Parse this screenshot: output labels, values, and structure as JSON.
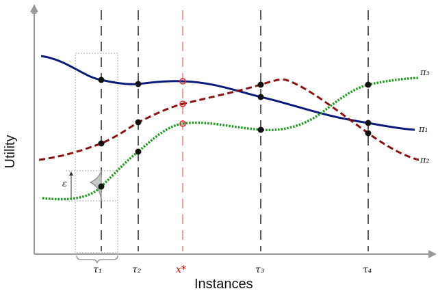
{
  "axes": {
    "x_label": "Instances",
    "y_label": "Utility"
  },
  "tick_labels": {
    "tau1": "τ₁",
    "tau2": "τ₂",
    "xstar": "x*",
    "tau3": "τ₃",
    "tau4": "τ₄"
  },
  "curve_labels": {
    "pi1": "π₁",
    "pi2": "π₂",
    "pi3": "π₃"
  },
  "epsilon_label": "ε",
  "colors": {
    "pi1": "#0a1a7a",
    "pi2": "#8b1010",
    "pi3": "#1f9a1f",
    "xstar": "#e03030",
    "axis": "#999999",
    "guide": "#222222",
    "marker": "#111111"
  },
  "icons": [
    "arrow-up-icon",
    "arrow-right-icon",
    "gaussian-bump-icon",
    "brace-icon"
  ]
}
